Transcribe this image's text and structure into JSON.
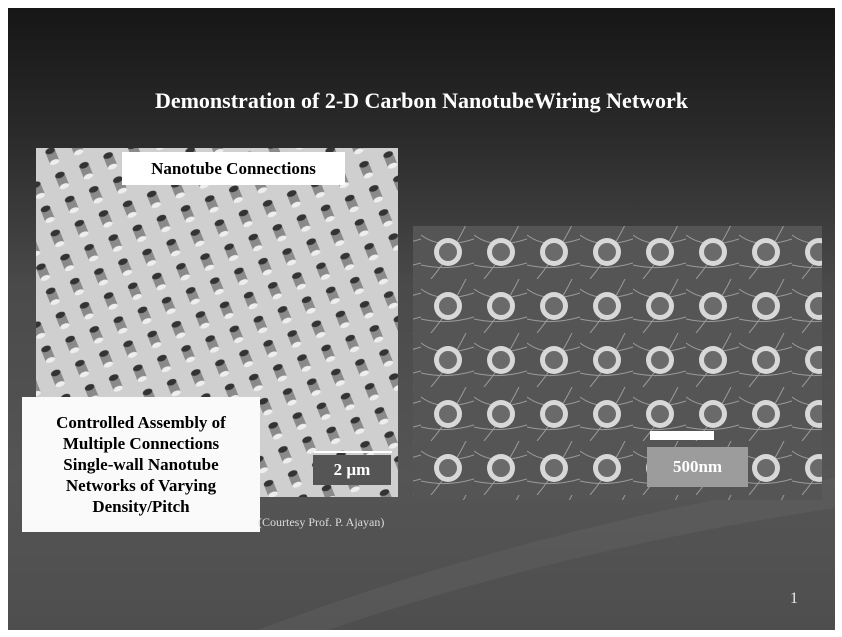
{
  "slide": {
    "title": "Demonstration of 2-D Carbon NanotubeWiring Network",
    "left_image": {
      "label": "Nanotube Connections",
      "scale_bar": "2 µm"
    },
    "right_image": {
      "scale_bar": "500nm"
    },
    "caption_box": {
      "lines": [
        "Controlled Assembly of",
        "Multiple Connections",
        "Single-wall Nanotube",
        "Networks of Varying",
        "Density/Pitch"
      ]
    },
    "courtesy": "(Courtesy Prof. P. Ajayan)",
    "page_number": "1"
  }
}
